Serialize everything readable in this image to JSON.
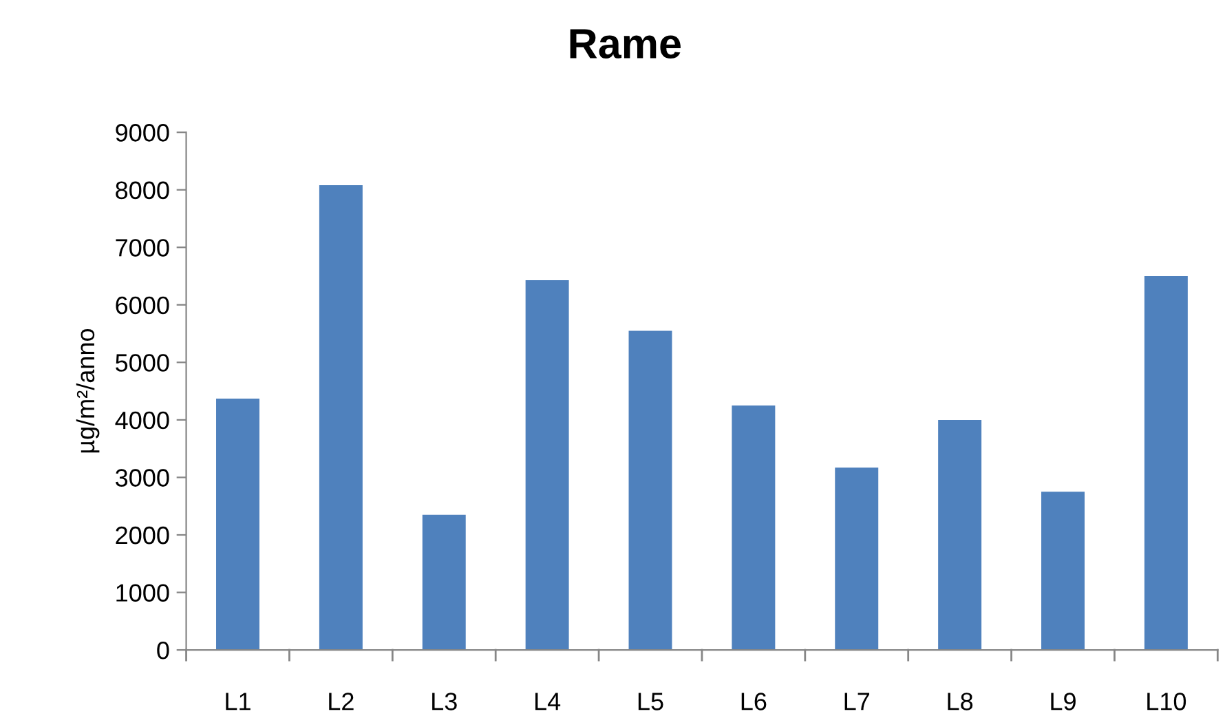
{
  "chart_data": {
    "type": "bar",
    "title": "Rame",
    "ylabel": "µg/m²/anno",
    "categories": [
      "L1",
      "L2",
      "L3",
      "L4",
      "L5",
      "L6",
      "L7",
      "L8",
      "L9",
      "L10"
    ],
    "values": [
      4370,
      8080,
      2350,
      6430,
      5550,
      4250,
      3170,
      4000,
      2750,
      6500
    ],
    "color": "#4f81bd",
    "ylim": [
      0,
      9000
    ],
    "yticks": [
      0,
      1000,
      2000,
      3000,
      4000,
      5000,
      6000,
      7000,
      8000,
      9000
    ],
    "grid": false
  }
}
